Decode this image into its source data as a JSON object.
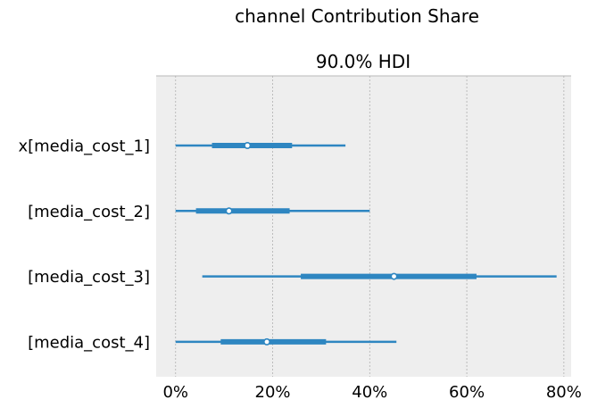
{
  "chart_data": {
    "type": "forest",
    "title": "channel Contribution Share",
    "subtitle": "90.0% HDI",
    "x_ticks": [
      "0%",
      "20%",
      "40%",
      "60%",
      "80%"
    ],
    "xlim": [
      -0.04,
      0.815
    ],
    "grid": "vertical",
    "colors": {
      "series": "#2e86c1",
      "panel_bg": "#eeeeee",
      "grid": "#b0b0b0"
    },
    "rows": [
      {
        "label": "x[media_cost_1]",
        "median": 0.148,
        "iqr": [
          0.075,
          0.24
        ],
        "hdi": [
          0.0,
          0.35
        ]
      },
      {
        "label": "[media_cost_2]",
        "median": 0.11,
        "iqr": [
          0.042,
          0.235
        ],
        "hdi": [
          0.0,
          0.4
        ]
      },
      {
        "label": "[media_cost_3]",
        "median": 0.45,
        "iqr": [
          0.258,
          0.62
        ],
        "hdi": [
          0.055,
          0.785
        ]
      },
      {
        "label": "[media_cost_4]",
        "median": 0.188,
        "iqr": [
          0.093,
          0.31
        ],
        "hdi": [
          0.0,
          0.455
        ]
      }
    ]
  }
}
